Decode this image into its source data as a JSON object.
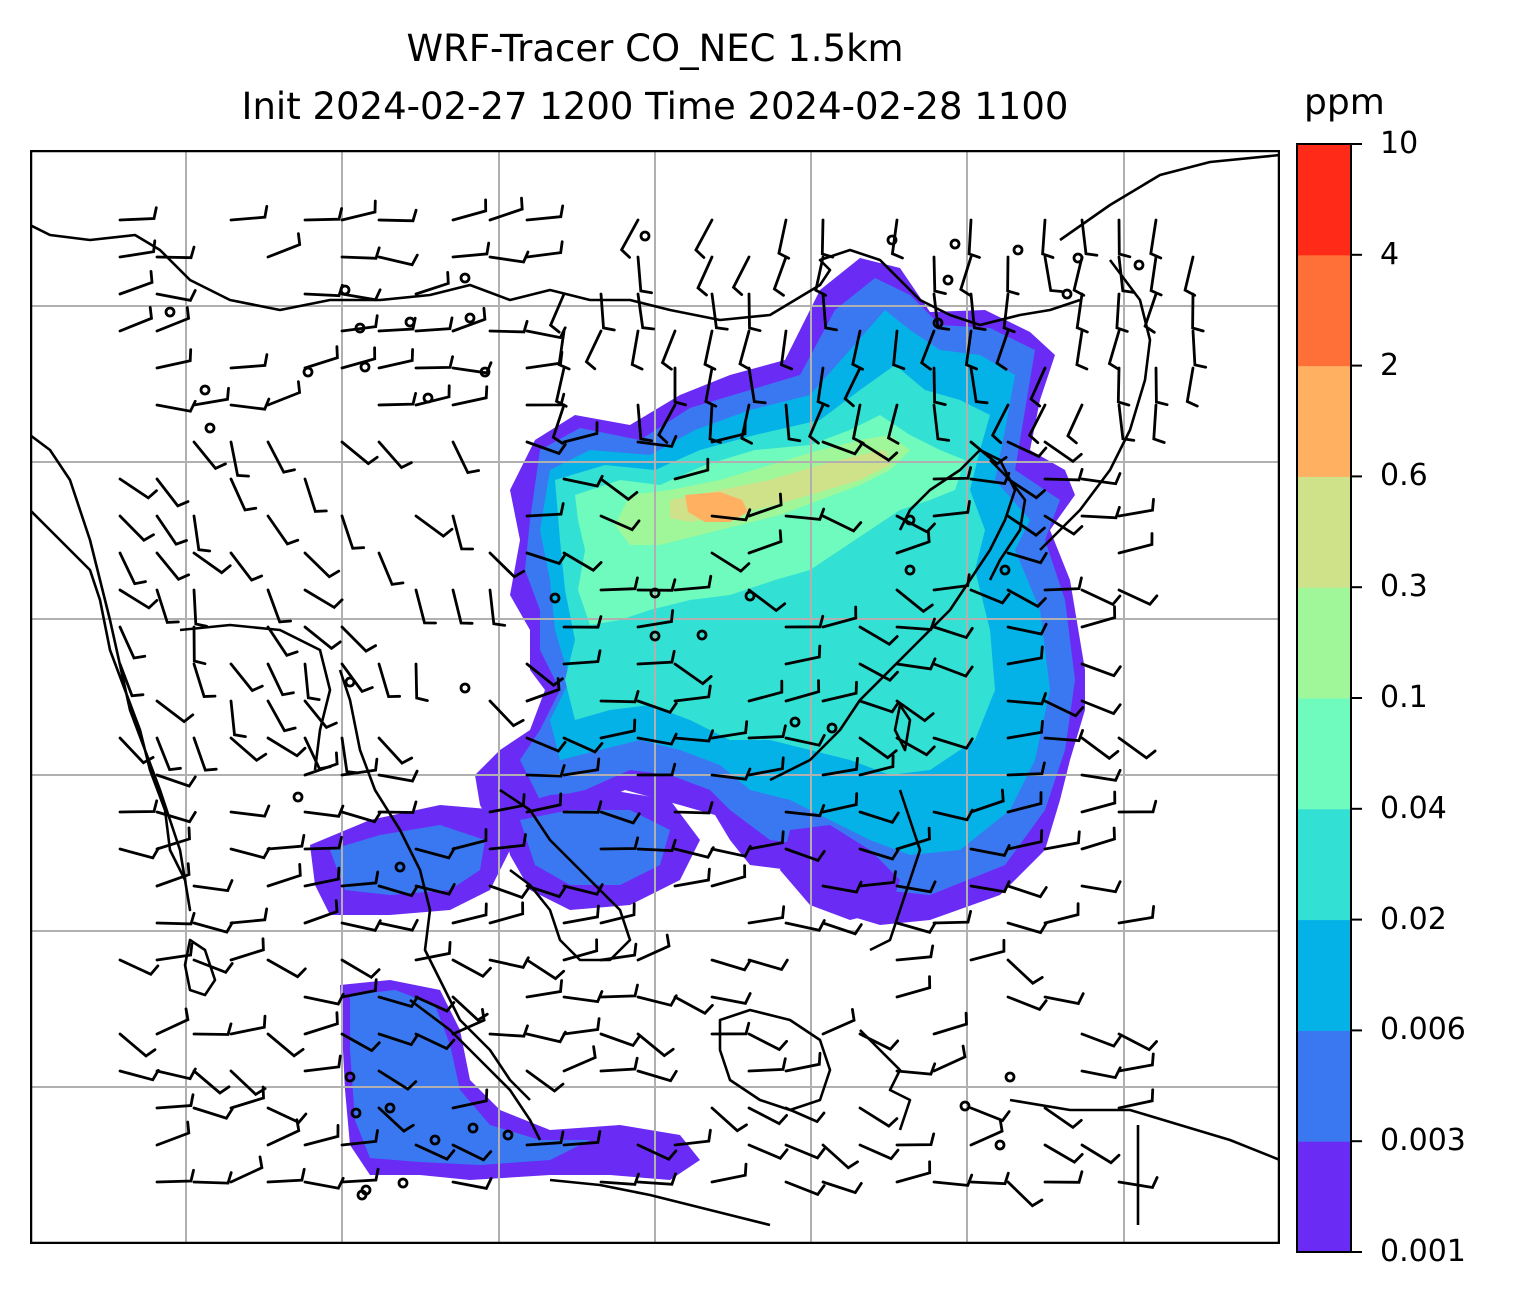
{
  "title": {
    "line1": "WRF-Tracer CO_NEC 1.5km",
    "line2": "Init 2024-02-27 1200 Time 2024-02-28 1100"
  },
  "colorbar": {
    "unit": "ppm",
    "tick_labels": [
      "0.001",
      "0.003",
      "0.006",
      "0.02",
      "0.04",
      "0.1",
      "0.3",
      "0.6",
      "2",
      "4",
      "10"
    ],
    "colors": [
      "#6a2cf5",
      "#3a78f2",
      "#05b2e8",
      "#33e0d4",
      "#6efbbd",
      "#9ff79a",
      "#cfe28a",
      "#ffb060",
      "#ff7038",
      "#ff2a18"
    ]
  },
  "map": {
    "gridlines": true,
    "coastline_color": "#000000",
    "gridline_color": "#b0b0b0"
  }
}
